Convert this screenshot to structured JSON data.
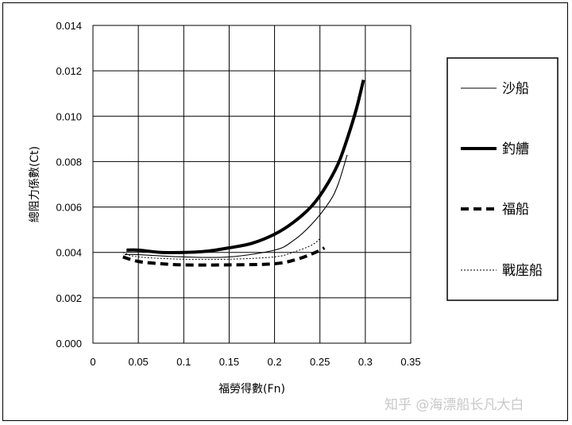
{
  "watermark": "知乎 @海漂船长凡大白",
  "chart_data": {
    "type": "line",
    "title": "",
    "xlabel": "福勞得數(Fn)",
    "ylabel": "總阻力係數(Ct)",
    "xlim": [
      0,
      0.35
    ],
    "ylim": [
      0,
      0.014
    ],
    "grid": true,
    "legend_position": "right",
    "x_tick_labels": [
      "0",
      "0.05",
      "0.1",
      "0.15",
      "0.2",
      "0.25",
      "0.3",
      "0.35"
    ],
    "y_tick_labels": [
      "0.000",
      "0.002",
      "0.004",
      "0.006",
      "0.008",
      "0.010",
      "0.012",
      "0.014"
    ],
    "x_ticks": [
      0,
      0.05,
      0.1,
      0.15,
      0.2,
      0.25,
      0.3,
      0.35
    ],
    "y_ticks": [
      0,
      0.002,
      0.004,
      0.006,
      0.008,
      0.01,
      0.012,
      0.014
    ],
    "series": [
      {
        "name": "沙船",
        "style": "thin-solid",
        "color": "#000000",
        "points": [
          [
            0.035,
            0.0039
          ],
          [
            0.05,
            0.0039
          ],
          [
            0.1,
            0.0038
          ],
          [
            0.15,
            0.0038
          ],
          [
            0.2,
            0.0041
          ],
          [
            0.22,
            0.0045
          ],
          [
            0.24,
            0.0052
          ],
          [
            0.26,
            0.0062
          ],
          [
            0.27,
            0.007
          ],
          [
            0.28,
            0.0083
          ]
        ]
      },
      {
        "name": "釣艚",
        "style": "thick-solid",
        "color": "#000000",
        "points": [
          [
            0.037,
            0.0041
          ],
          [
            0.05,
            0.0041
          ],
          [
            0.075,
            0.004
          ],
          [
            0.1,
            0.004
          ],
          [
            0.125,
            0.00405
          ],
          [
            0.15,
            0.0042
          ],
          [
            0.175,
            0.0044
          ],
          [
            0.2,
            0.0048
          ],
          [
            0.22,
            0.0053
          ],
          [
            0.24,
            0.006
          ],
          [
            0.255,
            0.0068
          ],
          [
            0.27,
            0.0079
          ],
          [
            0.28,
            0.009
          ],
          [
            0.29,
            0.0103
          ],
          [
            0.298,
            0.0116
          ]
        ]
      },
      {
        "name": "福船",
        "style": "thick-dashed",
        "color": "#000000",
        "points": [
          [
            0.033,
            0.0038
          ],
          [
            0.05,
            0.0036
          ],
          [
            0.075,
            0.0035
          ],
          [
            0.1,
            0.00345
          ],
          [
            0.15,
            0.00345
          ],
          [
            0.2,
            0.0035
          ],
          [
            0.225,
            0.0037
          ],
          [
            0.245,
            0.004
          ],
          [
            0.255,
            0.0042
          ]
        ]
      },
      {
        "name": "戰座船",
        "style": "thin-dotted",
        "color": "#000000",
        "points": [
          [
            0.033,
            0.004
          ],
          [
            0.05,
            0.0038
          ],
          [
            0.1,
            0.0037
          ],
          [
            0.15,
            0.0037
          ],
          [
            0.2,
            0.0038
          ],
          [
            0.22,
            0.004
          ],
          [
            0.24,
            0.0043
          ],
          [
            0.25,
            0.0046
          ]
        ]
      }
    ]
  }
}
